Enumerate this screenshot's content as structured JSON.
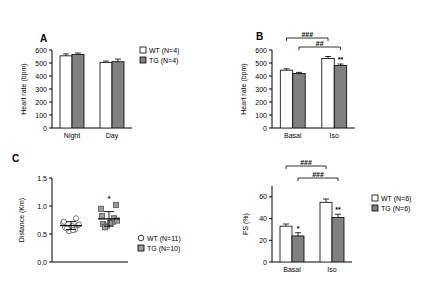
{
  "chart_data": [
    {
      "type": "bar",
      "title": "A",
      "y_label": "Heart rate (bpm)",
      "categories": [
        "Night",
        "Day"
      ],
      "series": [
        {
          "name": "WT (N=4)",
          "color": "#ffffff",
          "values": [
            555,
            505
          ],
          "errors": [
            15,
            10
          ]
        },
        {
          "name": "TG (N=4)",
          "color": "#808080",
          "values": [
            565,
            510
          ],
          "errors": [
            12,
            20
          ]
        }
      ],
      "ylim": [
        0,
        600
      ],
      "yticks": [
        0,
        100,
        200,
        300,
        400,
        500,
        600
      ],
      "legend": "upper right"
    },
    {
      "type": "bar",
      "title": "B",
      "y_label": "Heart rate (bpm)",
      "categories": [
        "Basal",
        "Iso"
      ],
      "series": [
        {
          "color": "#ffffff",
          "values": [
            445,
            535
          ],
          "errors": [
            10,
            15
          ]
        },
        {
          "color": "#808080",
          "values": [
            420,
            480
          ],
          "errors": [
            8,
            12
          ]
        }
      ],
      "ylim": [
        0,
        600
      ],
      "yticks": [
        0,
        100,
        200,
        300,
        400,
        500,
        600
      ],
      "annotations": [
        "###",
        "##",
        "**"
      ]
    },
    {
      "type": "dot",
      "title": "C",
      "y_label": "Distance (Km)",
      "series": [
        {
          "name": "WT (N=11)",
          "color": "#ffffff",
          "marker": "circle",
          "values": [
            0.62,
            0.58,
            0.55,
            0.66,
            0.7,
            0.64,
            0.78,
            0.6,
            0.67,
            0.72,
            0.57
          ],
          "mean": 0.65,
          "sd": 0.07
        },
        {
          "name": "TG (N=10)",
          "color": "#9a9a9a",
          "marker": "square",
          "values": [
            0.68,
            0.72,
            0.65,
            1.02,
            0.95,
            0.7,
            0.78,
            0.62,
            0.74,
            0.82
          ],
          "mean": 0.77,
          "sd": 0.13
        }
      ],
      "ylim": [
        0,
        1.5
      ],
      "yticks": [
        {
          "value": 0,
          "label": "0.0"
        },
        {
          "value": 0.5,
          "label": "0.5"
        },
        {
          "value": 1,
          "label": "1.0"
        },
        {
          "value": 1.5,
          "label": "1.5"
        }
      ],
      "legend": "lower right",
      "annotations": [
        "*"
      ]
    },
    {
      "type": "bar",
      "y_label": "FS (%)",
      "categories": [
        "Basal",
        "Iso"
      ],
      "series": [
        {
          "name": "WT (N=6)",
          "color": "#ffffff",
          "values": [
            33,
            55
          ],
          "errors": [
            2,
            3
          ]
        },
        {
          "name": "TG (N=6)",
          "color": "#808080",
          "values": [
            24,
            41
          ],
          "errors": [
            3,
            3
          ]
        }
      ],
      "ylim": [
        0,
        70
      ],
      "yticks": [
        0,
        20,
        40,
        60
      ],
      "legend": "right",
      "annotations": [
        "*",
        "**",
        "###",
        "###"
      ]
    }
  ]
}
